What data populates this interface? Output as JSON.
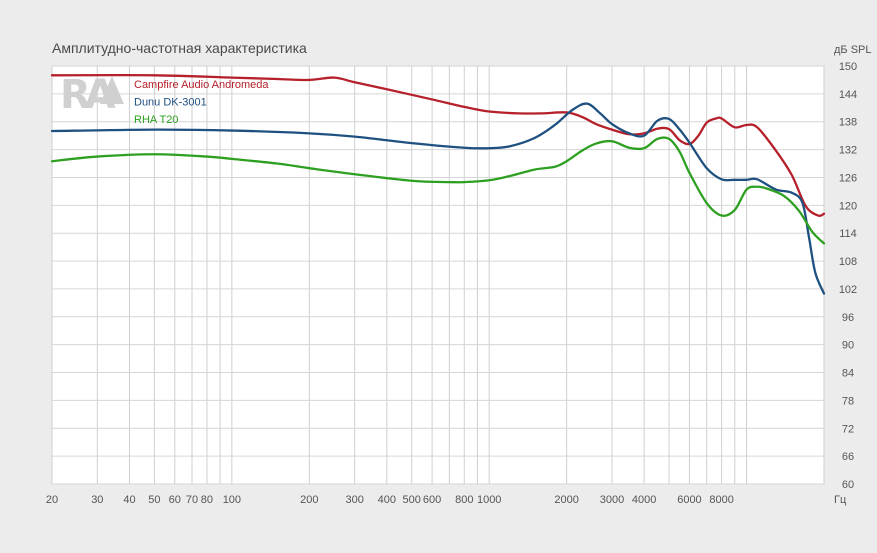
{
  "chart_data": {
    "type": "line",
    "title": "Амплитудно-частотная характеристика",
    "ylabel": "дБ SPL",
    "xlabel": "Гц",
    "x_scale": "log",
    "xlim": [
      20,
      20000
    ],
    "ylim": [
      60,
      150
    ],
    "x_ticks": [
      {
        "value": 20,
        "label": "20"
      },
      {
        "value": 30,
        "label": "30"
      },
      {
        "value": 40,
        "label": "40"
      },
      {
        "value": 50,
        "label": "50"
      },
      {
        "value": 60,
        "label": "60"
      },
      {
        "value": 70,
        "label": "70"
      },
      {
        "value": 80,
        "label": "80"
      },
      {
        "value": 100,
        "label": "100"
      },
      {
        "value": 200,
        "label": "200"
      },
      {
        "value": 300,
        "label": "300"
      },
      {
        "value": 400,
        "label": "400"
      },
      {
        "value": 500,
        "label": "500"
      },
      {
        "value": 600,
        "label": "600"
      },
      {
        "value": 800,
        "label": "800"
      },
      {
        "value": 1000,
        "label": "1000"
      },
      {
        "value": 2000,
        "label": "2000"
      },
      {
        "value": 3000,
        "label": "3000"
      },
      {
        "value": 4000,
        "label": "4000"
      },
      {
        "value": 6000,
        "label": "6000"
      },
      {
        "value": 8000,
        "label": "8000"
      }
    ],
    "y_ticks": [
      60,
      66,
      72,
      78,
      84,
      90,
      96,
      102,
      108,
      114,
      120,
      126,
      132,
      138,
      144,
      150
    ],
    "grid": true,
    "legend_position": "top-left",
    "series": [
      {
        "name": "Campfire Audio Andromeda",
        "color": "#b5202a",
        "x": [
          20,
          50,
          100,
          150,
          200,
          250,
          300,
          400,
          600,
          800,
          1000,
          1300,
          1600,
          2000,
          2300,
          2600,
          3000,
          3500,
          4000,
          4500,
          5000,
          5500,
          6000,
          6500,
          7000,
          7600,
          8000,
          9000,
          10000,
          11000,
          13000,
          15000,
          17000,
          19000,
          20000
        ],
        "values": [
          148,
          148,
          147.5,
          147.2,
          147,
          147.5,
          146.5,
          145,
          142.8,
          141.2,
          140.2,
          139.8,
          139.8,
          140,
          139,
          137.5,
          136.3,
          135.3,
          135.5,
          136.5,
          136.4,
          134,
          133.2,
          135,
          137.8,
          138.7,
          138.7,
          136.8,
          137.3,
          136.8,
          131.8,
          126.5,
          119.8,
          117.8,
          118.2
        ]
      },
      {
        "name": "Dunu DK-3001",
        "color": "#1e5080",
        "x": [
          20,
          50,
          100,
          200,
          300,
          500,
          800,
          1000,
          1200,
          1500,
          1800,
          2100,
          2400,
          2700,
          3000,
          3500,
          4000,
          4500,
          5000,
          5500,
          6000,
          7000,
          8000,
          9000,
          10000,
          11000,
          13000,
          15000,
          16500,
          17500,
          18500,
          20000
        ],
        "values": [
          136,
          136.3,
          136.1,
          135.5,
          134.8,
          133.4,
          132.4,
          132.3,
          132.7,
          134.5,
          137.3,
          140.5,
          141.9,
          139.8,
          137.5,
          135.5,
          135,
          138.2,
          138.6,
          136.3,
          133.5,
          128,
          125.6,
          125.5,
          125.5,
          125.6,
          123.4,
          122.7,
          120.5,
          113,
          105.5,
          101
        ]
      },
      {
        "name": "RHA T20",
        "color": "#2ea021",
        "x": [
          20,
          30,
          50,
          80,
          100,
          150,
          200,
          300,
          500,
          700,
          800,
          1000,
          1200,
          1500,
          1800,
          2000,
          2300,
          2600,
          3000,
          3500,
          4000,
          4500,
          5000,
          5500,
          6000,
          7000,
          8000,
          9000,
          10000,
          11000,
          12000,
          14000,
          16000,
          18000,
          20000
        ],
        "values": [
          129.5,
          130.5,
          131,
          130.5,
          130,
          129,
          128,
          126.7,
          125.3,
          125,
          125,
          125.4,
          126.3,
          127.7,
          128.3,
          129.5,
          131.8,
          133.3,
          133.8,
          132.4,
          132.3,
          134.3,
          134.3,
          131.5,
          127,
          120.5,
          117.8,
          119,
          123.4,
          124,
          123.6,
          122,
          118.8,
          114.3,
          111.8
        ]
      }
    ]
  }
}
